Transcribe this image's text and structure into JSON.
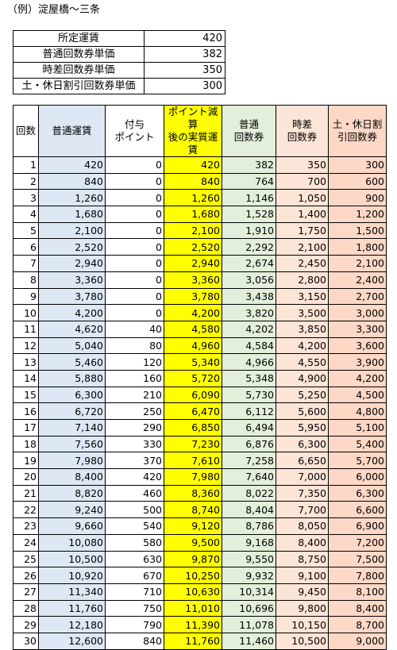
{
  "title": "（例）淀屋橋〜三条",
  "summary": [
    {
      "label": "所定運賃",
      "value": "420"
    },
    {
      "label": "普通回数券単価",
      "value": "382"
    },
    {
      "label": "時差回数券単価",
      "value": "350"
    },
    {
      "label": "土・休日割引回数券単価",
      "value": "300"
    }
  ],
  "headers": {
    "count": "回数",
    "fare": "普通運賃",
    "points_l1": "付与",
    "points_l2": "ポイント",
    "net_l1": "ポイント減算",
    "net_l2": "後の実質運",
    "net_l3": "賃",
    "regular_l1": "普通",
    "regular_l2": "回数券",
    "offpeak_l1": "時差",
    "offpeak_l2": "回数券",
    "holiday_l1": "土・休日割",
    "holiday_l2": "引回数券"
  },
  "rows": [
    [
      "1",
      "420",
      "0",
      "420",
      "382",
      "350",
      "300"
    ],
    [
      "2",
      "840",
      "0",
      "840",
      "764",
      "700",
      "600"
    ],
    [
      "3",
      "1,260",
      "0",
      "1,260",
      "1,146",
      "1,050",
      "900"
    ],
    [
      "4",
      "1,680",
      "0",
      "1,680",
      "1,528",
      "1,400",
      "1,200"
    ],
    [
      "5",
      "2,100",
      "0",
      "2,100",
      "1,910",
      "1,750",
      "1,500"
    ],
    [
      "6",
      "2,520",
      "0",
      "2,520",
      "2,292",
      "2,100",
      "1,800"
    ],
    [
      "7",
      "2,940",
      "0",
      "2,940",
      "2,674",
      "2,450",
      "2,100"
    ],
    [
      "8",
      "3,360",
      "0",
      "3,360",
      "3,056",
      "2,800",
      "2,400"
    ],
    [
      "9",
      "3,780",
      "0",
      "3,780",
      "3,438",
      "3,150",
      "2,700"
    ],
    [
      "10",
      "4,200",
      "0",
      "4,200",
      "3,820",
      "3,500",
      "3,000"
    ],
    [
      "11",
      "4,620",
      "40",
      "4,580",
      "4,202",
      "3,850",
      "3,300"
    ],
    [
      "12",
      "5,040",
      "80",
      "4,960",
      "4,584",
      "4,200",
      "3,600"
    ],
    [
      "13",
      "5,460",
      "120",
      "5,340",
      "4,966",
      "4,550",
      "3,900"
    ],
    [
      "14",
      "5,880",
      "160",
      "5,720",
      "5,348",
      "4,900",
      "4,200"
    ],
    [
      "15",
      "6,300",
      "210",
      "6,090",
      "5,730",
      "5,250",
      "4,500"
    ],
    [
      "16",
      "6,720",
      "250",
      "6,470",
      "6,112",
      "5,600",
      "4,800"
    ],
    [
      "17",
      "7,140",
      "290",
      "6,850",
      "6,494",
      "5,950",
      "5,100"
    ],
    [
      "18",
      "7,560",
      "330",
      "7,230",
      "6,876",
      "6,300",
      "5,400"
    ],
    [
      "19",
      "7,980",
      "370",
      "7,610",
      "7,258",
      "6,650",
      "5,700"
    ],
    [
      "20",
      "8,400",
      "420",
      "7,980",
      "7,640",
      "7,000",
      "6,000"
    ],
    [
      "21",
      "8,820",
      "460",
      "8,360",
      "8,022",
      "7,350",
      "6,300"
    ],
    [
      "22",
      "9,240",
      "500",
      "8,740",
      "8,404",
      "7,700",
      "6,600"
    ],
    [
      "23",
      "9,660",
      "540",
      "9,120",
      "8,786",
      "8,050",
      "6,900"
    ],
    [
      "24",
      "10,080",
      "580",
      "9,500",
      "9,168",
      "8,400",
      "7,200"
    ],
    [
      "25",
      "10,500",
      "630",
      "9,870",
      "9,550",
      "8,750",
      "7,500"
    ],
    [
      "26",
      "10,920",
      "670",
      "10,250",
      "9,932",
      "9,100",
      "7,800"
    ],
    [
      "27",
      "11,340",
      "710",
      "10,630",
      "10,314",
      "9,450",
      "8,100"
    ],
    [
      "28",
      "11,760",
      "750",
      "11,010",
      "10,696",
      "9,800",
      "8,400"
    ],
    [
      "29",
      "12,180",
      "790",
      "11,390",
      "11,078",
      "10,150",
      "8,700"
    ],
    [
      "30",
      "12,600",
      "840",
      "11,760",
      "11,460",
      "10,500",
      "9,000"
    ]
  ]
}
